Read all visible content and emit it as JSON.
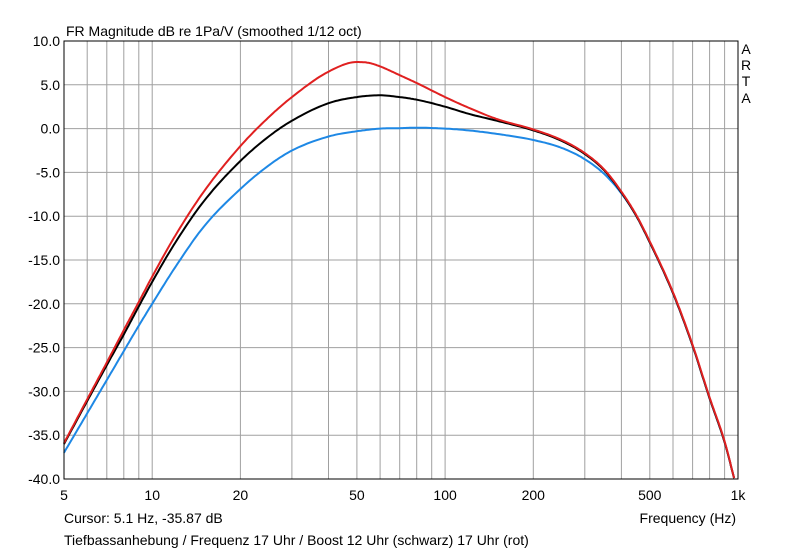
{
  "chart_data": {
    "type": "line",
    "title": "FR Magnitude dB re 1Pa/V (smoothed 1/12 oct)",
    "brand_letters": [
      "A",
      "R",
      "T",
      "A"
    ],
    "xlabel": "Frequency (Hz)",
    "x_scale": "log",
    "xlim": [
      5,
      1000
    ],
    "ylim": [
      -40,
      10
    ],
    "grid": true,
    "y_ticks": [
      "10.0",
      "5.0",
      "0.0",
      "-5.0",
      "-10.0",
      "-15.0",
      "-20.0",
      "-25.0",
      "-30.0",
      "-35.0",
      "-40.0"
    ],
    "x_ticks": [
      {
        "value": 5,
        "label": "5"
      },
      {
        "value": 10,
        "label": "10"
      },
      {
        "value": 20,
        "label": "20"
      },
      {
        "value": 50,
        "label": "50"
      },
      {
        "value": 100,
        "label": "100"
      },
      {
        "value": 200,
        "label": "200"
      },
      {
        "value": 500,
        "label": "500"
      },
      {
        "value": 1000,
        "label": "1k"
      }
    ],
    "cursor_text": "Cursor: 5.1 Hz, -35.87 dB",
    "caption": "Tiefbassanhebung / Frequenz 17 Uhr / Boost 12 Uhr (schwarz) 17 Uhr (rot)",
    "series": [
      {
        "color": "#1e88e5",
        "points": [
          [
            5,
            -37.0
          ],
          [
            6,
            -32.5
          ],
          [
            7,
            -28.7
          ],
          [
            8,
            -25.4
          ],
          [
            9,
            -22.5
          ],
          [
            10,
            -20.0
          ],
          [
            12,
            -15.8
          ],
          [
            15,
            -11.2
          ],
          [
            20,
            -6.9
          ],
          [
            25,
            -4.2
          ],
          [
            30,
            -2.5
          ],
          [
            40,
            -0.9
          ],
          [
            50,
            -0.3
          ],
          [
            60,
            0.0
          ],
          [
            70,
            0.05
          ],
          [
            80,
            0.1
          ],
          [
            100,
            0.0
          ],
          [
            120,
            -0.2
          ],
          [
            150,
            -0.6
          ],
          [
            200,
            -1.3
          ],
          [
            250,
            -2.2
          ],
          [
            300,
            -3.5
          ],
          [
            350,
            -5.2
          ],
          [
            400,
            -7.4
          ],
          [
            450,
            -10.0
          ],
          [
            500,
            -13.0
          ],
          [
            600,
            -18.8
          ],
          [
            700,
            -24.8
          ],
          [
            800,
            -30.8
          ],
          [
            900,
            -35.8
          ],
          [
            970,
            -39.9
          ]
        ]
      },
      {
        "color": "#000000",
        "points": [
          [
            5,
            -36.0
          ],
          [
            6,
            -31.1
          ],
          [
            7,
            -27.0
          ],
          [
            8,
            -23.5
          ],
          [
            9,
            -20.3
          ],
          [
            10,
            -17.5
          ],
          [
            12,
            -13.0
          ],
          [
            15,
            -8.3
          ],
          [
            20,
            -3.7
          ],
          [
            25,
            -0.9
          ],
          [
            30,
            0.9
          ],
          [
            40,
            2.9
          ],
          [
            50,
            3.6
          ],
          [
            60,
            3.8
          ],
          [
            70,
            3.6
          ],
          [
            80,
            3.3
          ],
          [
            100,
            2.5
          ],
          [
            120,
            1.7
          ],
          [
            150,
            0.9
          ],
          [
            200,
            -0.2
          ],
          [
            250,
            -1.4
          ],
          [
            300,
            -2.9
          ],
          [
            350,
            -4.8
          ],
          [
            400,
            -7.3
          ],
          [
            450,
            -10.0
          ],
          [
            500,
            -13.0
          ],
          [
            600,
            -18.8
          ],
          [
            700,
            -24.8
          ],
          [
            800,
            -30.8
          ],
          [
            900,
            -35.8
          ],
          [
            970,
            -39.9
          ]
        ]
      },
      {
        "color": "#e02020",
        "points": [
          [
            5,
            -35.9
          ],
          [
            6,
            -30.9
          ],
          [
            7,
            -26.7
          ],
          [
            8,
            -23.0
          ],
          [
            9,
            -19.8
          ],
          [
            10,
            -16.9
          ],
          [
            12,
            -12.2
          ],
          [
            15,
            -7.2
          ],
          [
            20,
            -2.0
          ],
          [
            25,
            1.3
          ],
          [
            30,
            3.6
          ],
          [
            40,
            6.5
          ],
          [
            50,
            7.6
          ],
          [
            55,
            7.5
          ],
          [
            60,
            7.1
          ],
          [
            70,
            6.1
          ],
          [
            80,
            5.2
          ],
          [
            100,
            3.6
          ],
          [
            120,
            2.4
          ],
          [
            150,
            1.1
          ],
          [
            200,
            -0.1
          ],
          [
            250,
            -1.3
          ],
          [
            300,
            -2.8
          ],
          [
            350,
            -4.7
          ],
          [
            400,
            -7.2
          ],
          [
            450,
            -9.9
          ],
          [
            500,
            -12.9
          ],
          [
            600,
            -18.7
          ],
          [
            700,
            -24.7
          ],
          [
            800,
            -30.7
          ],
          [
            900,
            -35.7
          ],
          [
            970,
            -39.9
          ]
        ]
      }
    ]
  }
}
